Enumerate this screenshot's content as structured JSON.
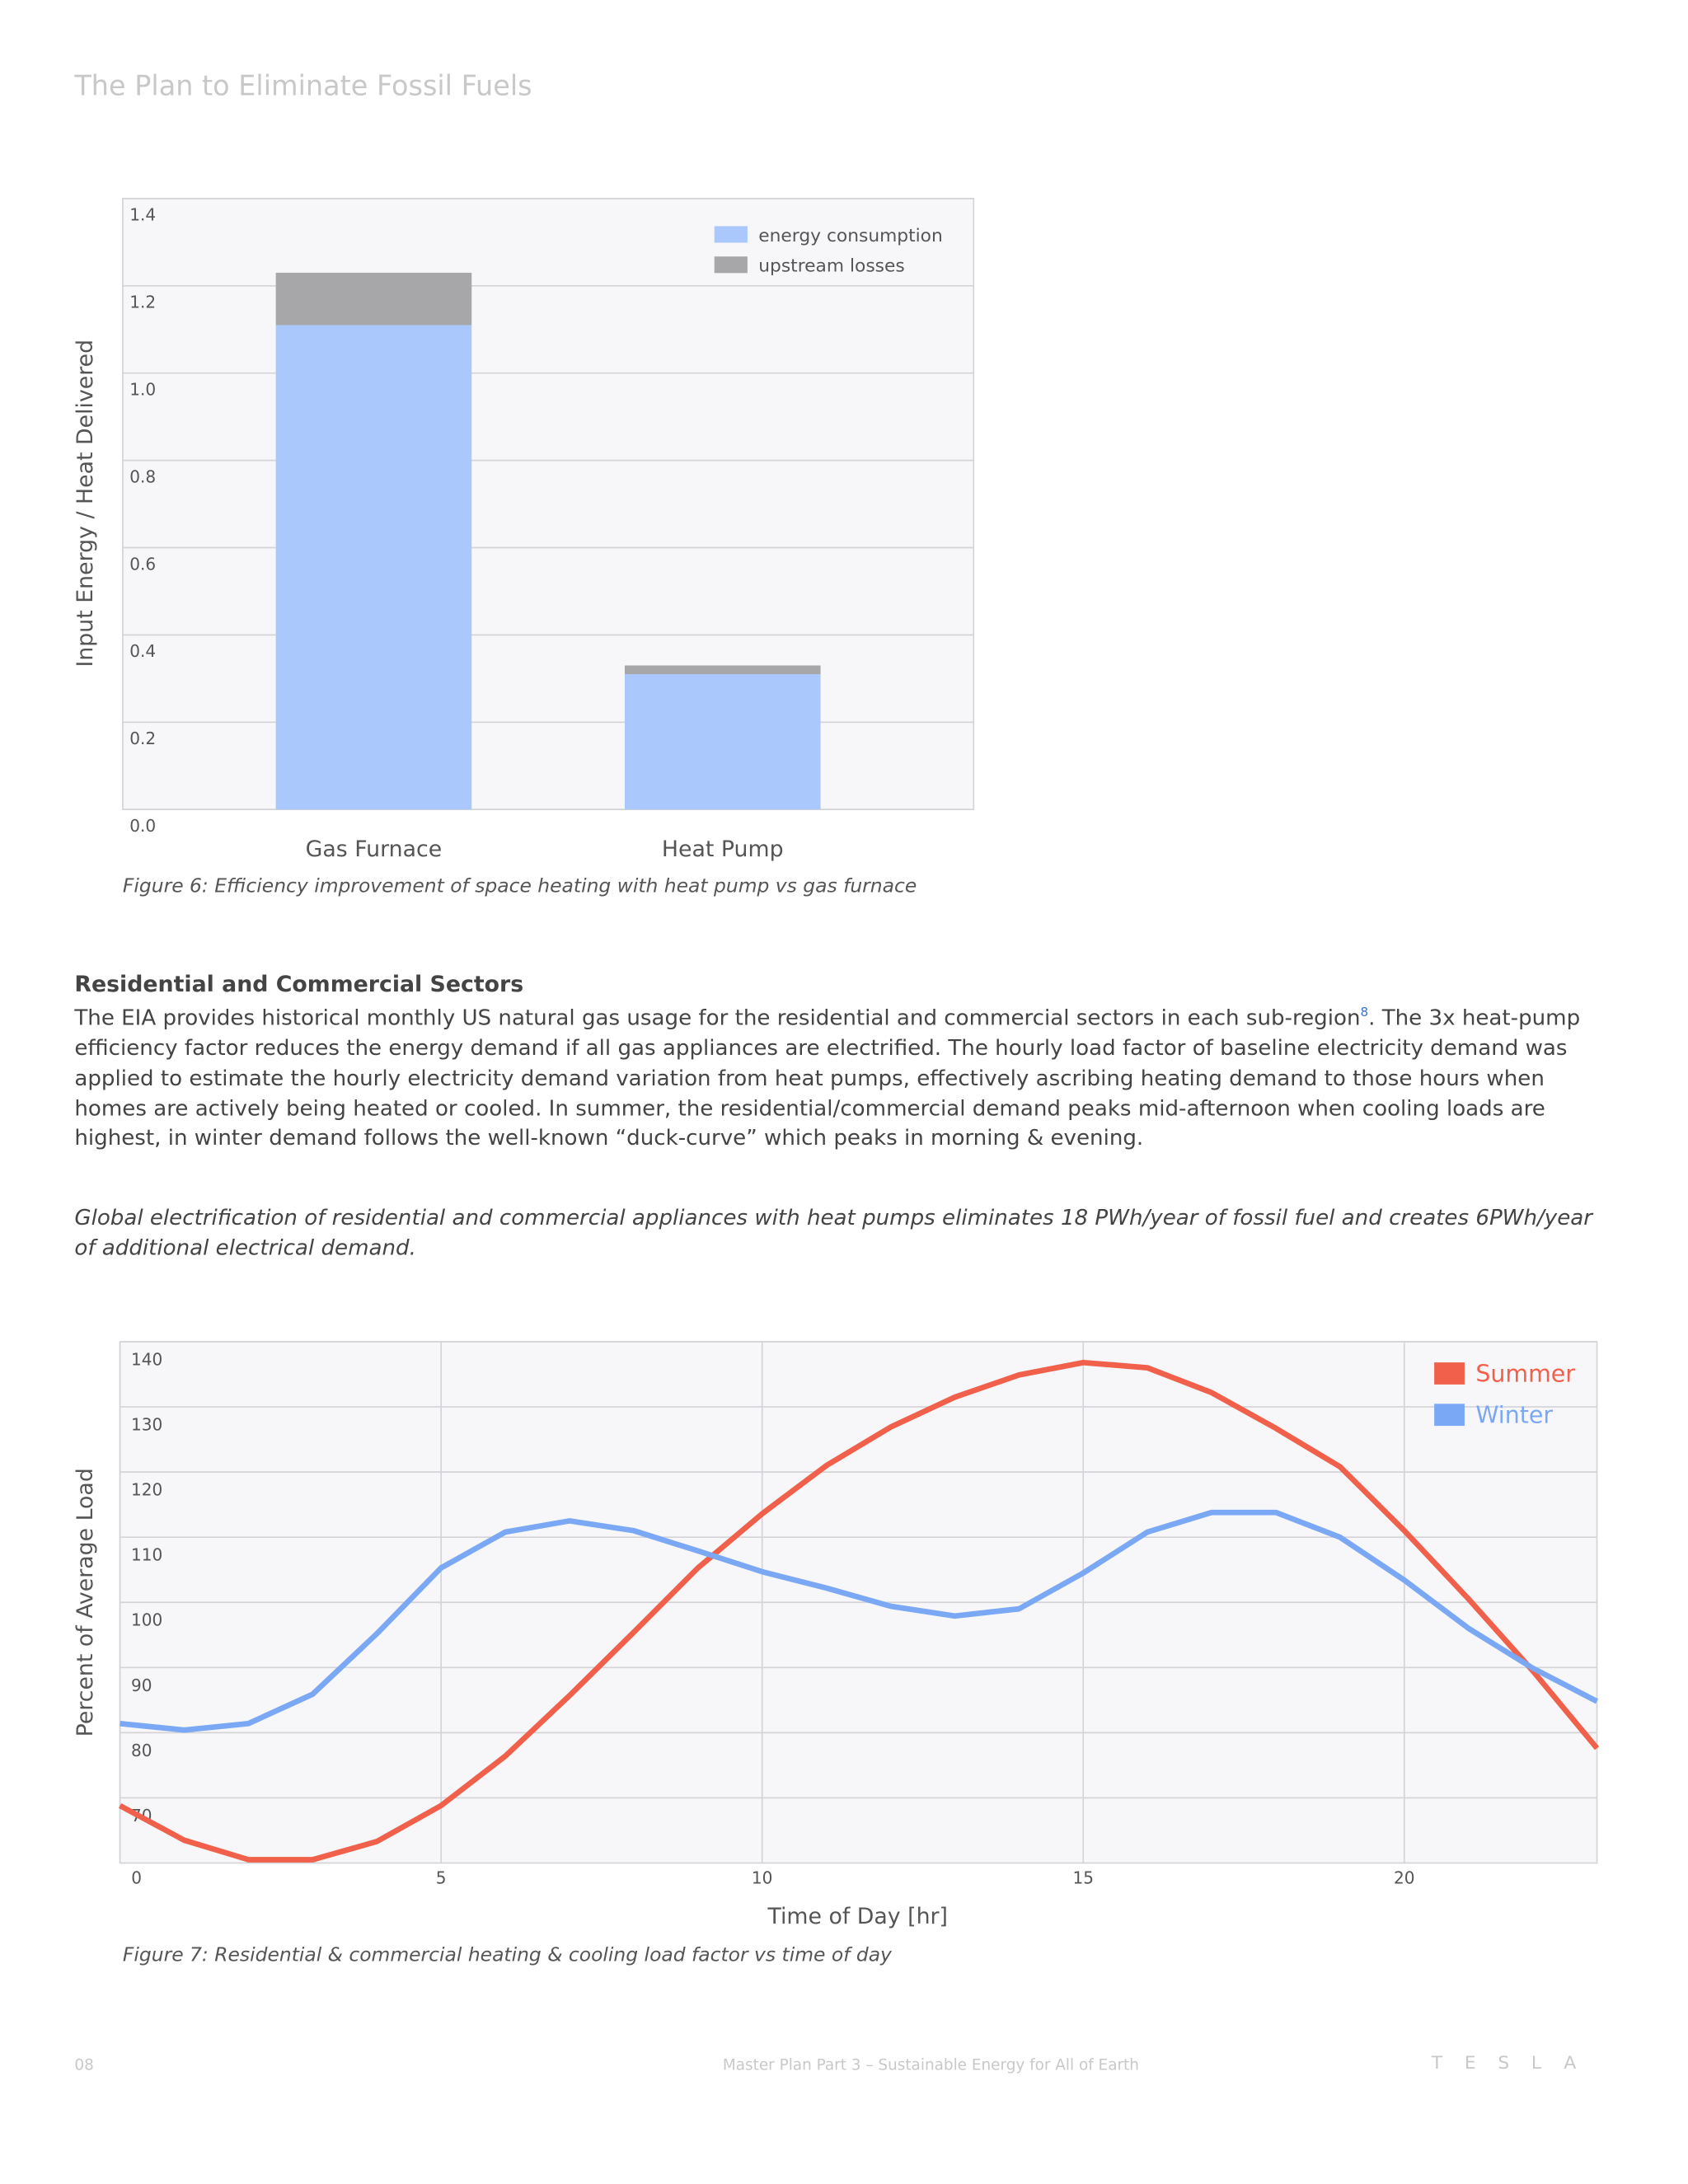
{
  "header": {
    "title": "The Plan to Eliminate Fossil Fuels"
  },
  "chart_data": [
    {
      "type": "stacked_bar",
      "ylabel": "Input Energy / Heat Delivered",
      "caption": "Figure 6: Efficiency improvement of space heating with heat pump vs gas furnace",
      "categories": [
        "Gas Furnace",
        "Heat Pump"
      ],
      "series": [
        {
          "name": "energy consumption",
          "color": "#aac8fb",
          "values": [
            1.11,
            0.31
          ]
        },
        {
          "name": "upstream losses",
          "color": "#a7a7aa",
          "values": [
            0.12,
            0.02
          ]
        }
      ],
      "ylim": [
        0,
        1.4
      ],
      "yticks": [
        {
          "value": 0,
          "label": "0.0"
        },
        0.2,
        0.4,
        0.6,
        0.8,
        {
          "value": 1,
          "label": "1.0"
        },
        1.2,
        1.4
      ],
      "grid": true,
      "legend": "top-right"
    },
    {
      "type": "line",
      "xlabel": "Time of Day [hr]",
      "ylabel": "Percent of Average Load",
      "caption": "Figure 7: Residential & commercial  heating & cooling load factor vs time of day",
      "x": [
        0,
        1,
        2,
        3,
        4,
        5,
        6,
        7,
        8,
        9,
        10,
        11,
        12,
        13,
        14,
        15,
        16,
        17,
        18,
        19,
        20,
        21,
        22,
        23
      ],
      "series": [
        {
          "name": "Summer",
          "color": "#f0604a",
          "values": [
            68.8,
            63.5,
            60.5,
            60.5,
            63.3,
            68.8,
            76.4,
            85.7,
            95.4,
            105.3,
            113.6,
            121,
            126.9,
            131.5,
            134.9,
            136.8,
            136,
            132.2,
            126.7,
            120.8,
            111,
            100.5,
            89.5,
            77.6
          ]
        },
        {
          "name": "Winter",
          "color": "#7aa8f5",
          "values": [
            81.4,
            80.4,
            81.4,
            85.9,
            95.2,
            105.3,
            110.8,
            112.5,
            111,
            107.9,
            104.7,
            102.2,
            99.4,
            97.9,
            99,
            104.5,
            110.8,
            113.8,
            113.8,
            110,
            103.4,
            96,
            89.9,
            84.8
          ]
        }
      ],
      "xlim": [
        0,
        23
      ],
      "xticks": [
        0,
        5,
        10,
        15,
        20
      ],
      "ylim": [
        60,
        140
      ],
      "yticks": [
        70,
        80,
        90,
        100,
        110,
        120,
        130,
        140
      ],
      "grid": true,
      "legend": "top-right"
    }
  ],
  "section": {
    "heading": "Residential and Commercial Sectors",
    "paragraph_start": "The EIA provides historical monthly US natural gas usage for the residential and commercial sectors in each sub-region",
    "footnote": "8",
    "paragraph_end": ". The 3x heat-pump efficiency factor reduces the energy demand if all gas appliances are electrified. The hourly load factor of baseline electricity demand was applied to estimate the hourly electricity demand variation from heat pumps, effectively ascribing heating demand to those hours when homes are actively being heated or cooled. In summer, the residential/commercial demand peaks mid-afternoon when cooling loads are highest, in winter demand follows the well-known “duck-curve” which peaks in morning & evening.",
    "conclusion": "Global electrification of residential and commercial appliances with heat pumps eliminates 18 PWh/year of fossil fuel and creates 6PWh/year of additional electrical demand."
  },
  "footer": {
    "page": "08",
    "text": "Master Plan Part 3 – Sustainable Energy for All of Earth",
    "logo": "TESLA"
  }
}
